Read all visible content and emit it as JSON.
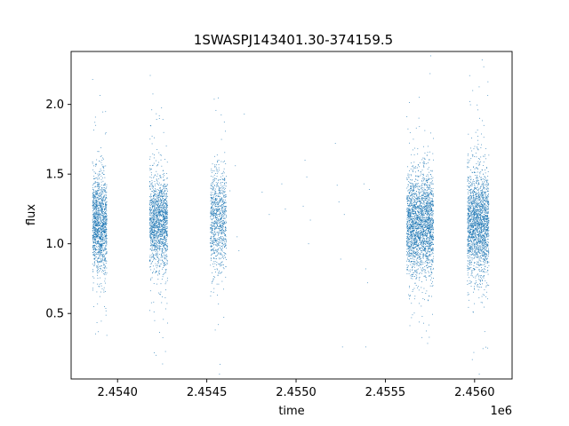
{
  "chart_data": {
    "type": "scatter",
    "title": "1SWASPJ143401.30-374159.5",
    "xlabel": "time",
    "ylabel": "flux",
    "x_offset_label": "1e6",
    "xlim": [
      2.45374,
      2.45621
    ],
    "ylim": [
      0.03,
      2.38
    ],
    "x_ticks": [
      2.454,
      2.4545,
      2.455,
      2.4555,
      2.456
    ],
    "x_tick_labels": [
      "2.4540",
      "2.4545",
      "2.4550",
      "2.4555",
      "2.4560"
    ],
    "y_ticks": [
      0.5,
      1.0,
      1.5,
      2.0
    ],
    "y_tick_labels": [
      "0.5",
      "1.0",
      "1.5",
      "2.0"
    ],
    "grid": false,
    "legend": "none",
    "marker_color": "#1f77b4",
    "clusters": [
      {
        "x_start": 2.45386,
        "x_end": 2.45394,
        "flux_center": 1.15,
        "flux_spread": 0.17,
        "points": 1400
      },
      {
        "x_start": 2.45418,
        "x_end": 2.45428,
        "flux_center": 1.15,
        "flux_spread": 0.17,
        "points": 1500
      },
      {
        "x_start": 2.45452,
        "x_end": 2.45461,
        "flux_center": 1.18,
        "flux_spread": 0.18,
        "points": 900
      },
      {
        "x_start": 2.45562,
        "x_end": 2.45577,
        "flux_center": 1.15,
        "flux_spread": 0.18,
        "points": 2400
      },
      {
        "x_start": 2.45596,
        "x_end": 2.45608,
        "flux_center": 1.15,
        "flux_spread": 0.19,
        "points": 2000
      }
    ],
    "sparse_points": [
      [
        2.45463,
        1.38
      ],
      [
        2.45466,
        1.56
      ],
      [
        2.45467,
        1.05
      ],
      [
        2.45468,
        0.95
      ],
      [
        2.45471,
        1.93
      ],
      [
        2.45481,
        1.37
      ],
      [
        2.45485,
        1.21
      ],
      [
        2.45492,
        1.43
      ],
      [
        2.45494,
        1.25
      ],
      [
        2.45504,
        1.27
      ],
      [
        2.45505,
        1.6
      ],
      [
        2.45506,
        1.48
      ],
      [
        2.45507,
        1.0
      ],
      [
        2.45508,
        1.17
      ],
      [
        2.45522,
        1.72
      ],
      [
        2.45523,
        1.42
      ],
      [
        2.45524,
        1.3
      ],
      [
        2.45525,
        0.89
      ],
      [
        2.45527,
        1.21
      ],
      [
        2.45538,
        1.43
      ],
      [
        2.45539,
        0.82
      ],
      [
        2.4554,
        0.72
      ],
      [
        2.45541,
        1.39
      ],
      [
        2.45526,
        0.26
      ],
      [
        2.45539,
        0.26
      ]
    ]
  }
}
